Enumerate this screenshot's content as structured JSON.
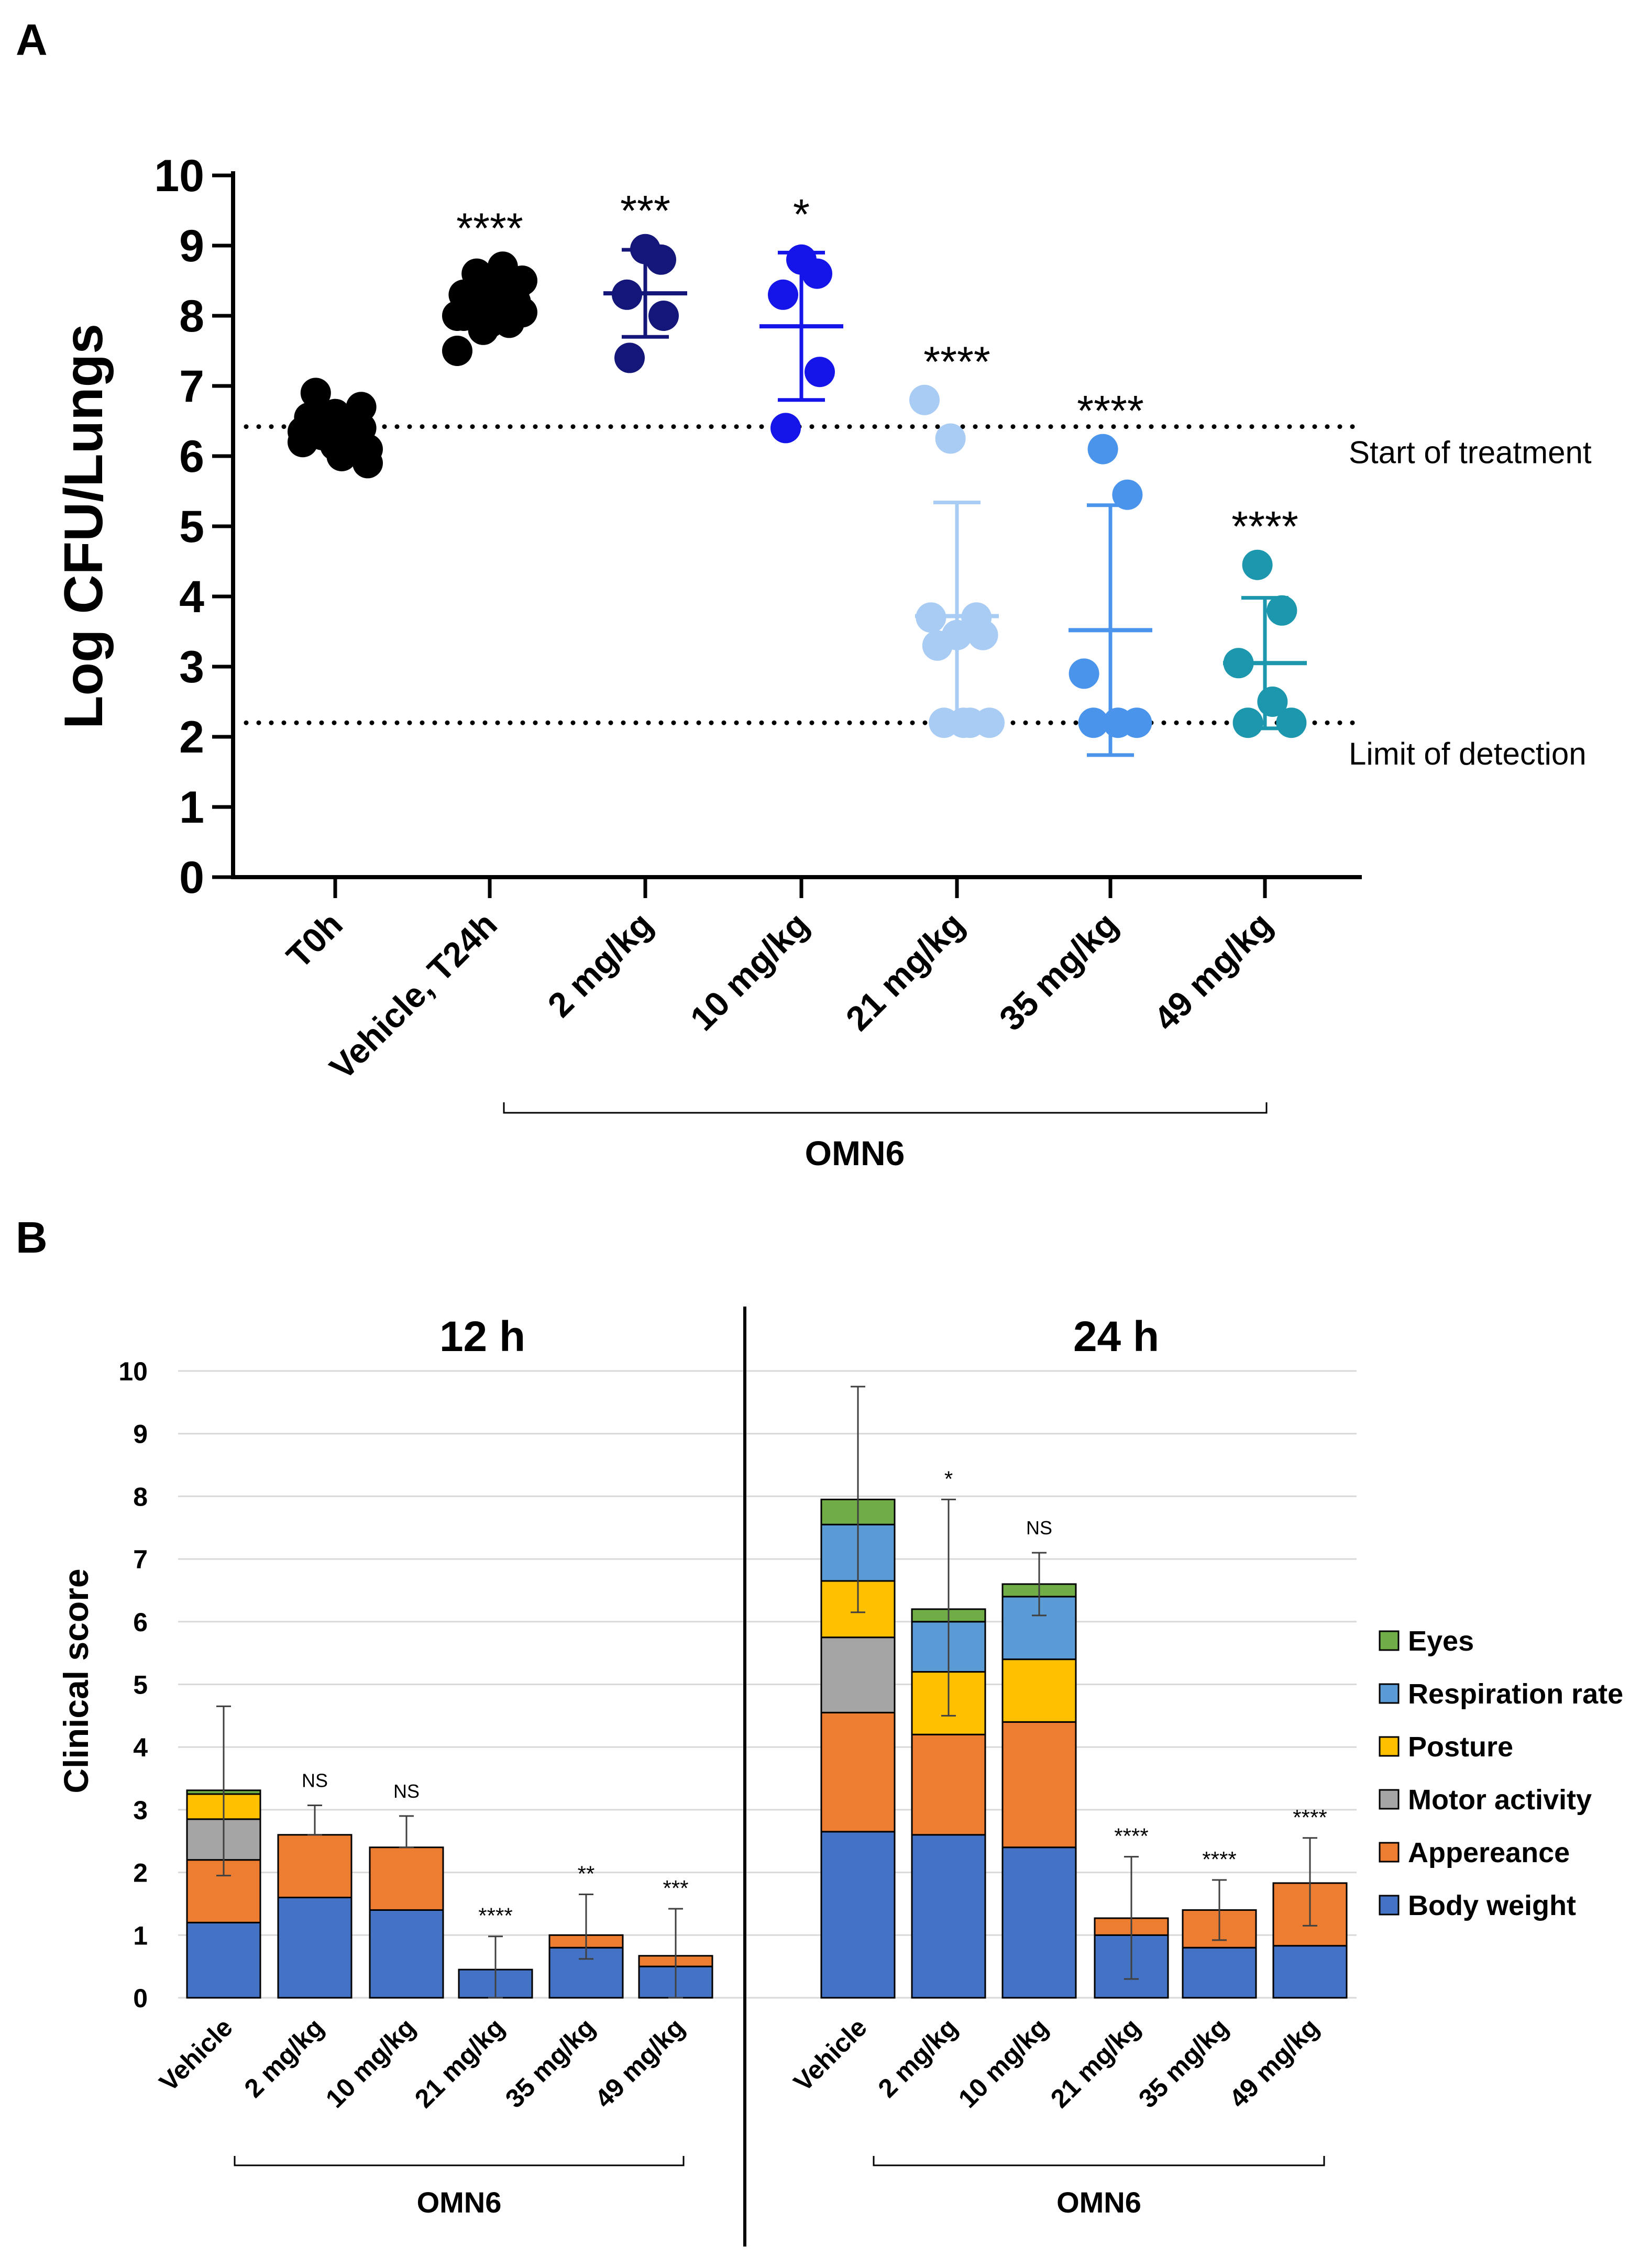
{
  "chart_data": [
    {
      "panel": "A",
      "type": "scatter",
      "ylabel": "Log CFU/Lungs",
      "ylim": [
        0,
        10
      ],
      "yticks": [
        "0",
        "1",
        "2",
        "3",
        "4",
        "5",
        "6",
        "7",
        "8",
        "9",
        "10"
      ],
      "categories": [
        "T0h",
        "Vehicle, T24h",
        "2 mg/kg",
        "10 mg/kg",
        "21 mg/kg",
        "35 mg/kg",
        "49 mg/kg"
      ],
      "bracket_label": "OMN6",
      "reference_lines": [
        {
          "label": "Start of treatment",
          "y": 6.42
        },
        {
          "label": "Limit of detection",
          "y": 2.2
        }
      ],
      "groups": [
        {
          "category": "T0h",
          "color": "#000000",
          "significance": "",
          "mean": null,
          "sd": null,
          "points": [
            6.2,
            6.3,
            6.4,
            6.5,
            6.6,
            6.7,
            6.9,
            6.0,
            6.1,
            6.3,
            6.5,
            6.35,
            6.45,
            6.25,
            6.55,
            6.15,
            6.4,
            6.6,
            6.3,
            5.9
          ]
        },
        {
          "category": "Vehicle, T24h",
          "color": "#000000",
          "significance": "****",
          "mean": null,
          "sd": null,
          "points": [
            7.5,
            7.8,
            7.9,
            8.0,
            8.1,
            8.2,
            8.3,
            8.4,
            8.5,
            8.6,
            8.7,
            8.0,
            8.1,
            8.2,
            8.3,
            7.9,
            8.4,
            8.15,
            8.25,
            8.05
          ]
        },
        {
          "category": "2 mg/kg",
          "color": "#15167a",
          "significance": "***",
          "mean": 8.32,
          "sd": 0.62,
          "points": [
            7.4,
            8.0,
            8.3,
            8.8,
            8.95
          ]
        },
        {
          "category": "10 mg/kg",
          "color": "#1515ea",
          "significance": "*",
          "mean": 7.85,
          "sd": 1.05,
          "points": [
            6.4,
            7.2,
            8.3,
            8.6,
            8.8
          ]
        },
        {
          "category": "21 mg/kg",
          "color": "#a9ccf4",
          "significance": "****",
          "mean": 3.72,
          "sd": 1.62,
          "points": [
            6.8,
            6.25,
            3.7,
            3.7,
            3.45,
            3.45,
            3.3,
            2.2,
            2.2,
            2.2,
            2.2
          ]
        },
        {
          "category": "35 mg/kg",
          "color": "#4a94ec",
          "significance": "****",
          "mean": 3.52,
          "sd": 1.78,
          "points": [
            6.1,
            5.45,
            2.9,
            2.2,
            2.2,
            2.2
          ]
        },
        {
          "category": "49 mg/kg",
          "color": "#1c97ae",
          "significance": "****",
          "mean": 3.05,
          "sd": 0.93,
          "points": [
            4.45,
            3.8,
            3.05,
            2.5,
            2.2,
            2.2
          ]
        }
      ]
    },
    {
      "panel": "B",
      "type": "bar",
      "stacked": true,
      "ylabel": "Clinical score",
      "ylim": [
        0,
        10
      ],
      "yticks": [
        "0",
        "1",
        "2",
        "3",
        "4",
        "5",
        "6",
        "7",
        "8",
        "9",
        "10"
      ],
      "categories": [
        "Vehicle",
        "2 mg/kg",
        "10 mg/kg",
        "21 mg/kg",
        "35 mg/kg",
        "49 mg/kg"
      ],
      "bracket_label": "OMN6",
      "legend": [
        {
          "name": "Eyes",
          "color": "#70ad47"
        },
        {
          "name": "Respiration rate",
          "color": "#5b9bd5"
        },
        {
          "name": "Posture",
          "color": "#ffc000"
        },
        {
          "name": "Motor activity",
          "color": "#a5a5a5"
        },
        {
          "name": "Appereance",
          "color": "#ed7d31"
        },
        {
          "name": "Body weight",
          "color": "#4472c4"
        }
      ],
      "subplots": [
        {
          "title": "12 h",
          "significance": [
            "",
            "NS",
            "NS",
            "****",
            "**",
            "***"
          ],
          "error_upper": [
            4.65,
            3.07,
            2.9,
            0.98,
            1.65,
            1.42
          ],
          "error_lower": [
            1.95,
            2.6,
            2.4,
            0.0,
            0.62,
            0.0
          ],
          "series": [
            {
              "name": "Body weight",
              "values": [
                1.2,
                1.6,
                1.4,
                0.45,
                0.8,
                0.5
              ]
            },
            {
              "name": "Appereance",
              "values": [
                1.0,
                1.0,
                1.0,
                0.0,
                0.2,
                0.17
              ]
            },
            {
              "name": "Motor activity",
              "values": [
                0.65,
                0,
                0,
                0,
                0,
                0
              ]
            },
            {
              "name": "Posture",
              "values": [
                0.4,
                0,
                0,
                0,
                0,
                0
              ]
            },
            {
              "name": "Respiration rate",
              "values": [
                0,
                0,
                0,
                0,
                0,
                0
              ]
            },
            {
              "name": "Eyes",
              "values": [
                0.06,
                0,
                0,
                0,
                0,
                0
              ]
            }
          ]
        },
        {
          "title": "24 h",
          "significance": [
            "",
            "*",
            "NS",
            "****",
            "****",
            "****"
          ],
          "error_upper": [
            9.75,
            7.95,
            7.1,
            2.25,
            1.88,
            2.55
          ],
          "error_lower": [
            6.15,
            4.5,
            6.1,
            0.3,
            0.92,
            1.15
          ],
          "series": [
            {
              "name": "Body weight",
              "values": [
                2.65,
                2.6,
                2.4,
                1.0,
                0.8,
                0.83
              ]
            },
            {
              "name": "Appereance",
              "values": [
                1.9,
                1.6,
                2.0,
                0.27,
                0.6,
                1.0
              ]
            },
            {
              "name": "Motor activity",
              "values": [
                1.2,
                0,
                0,
                0,
                0,
                0
              ]
            },
            {
              "name": "Posture",
              "values": [
                0.9,
                1.0,
                1.0,
                0,
                0,
                0
              ]
            },
            {
              "name": "Respiration rate",
              "values": [
                0.9,
                0.8,
                1.0,
                0,
                0,
                0
              ]
            },
            {
              "name": "Eyes",
              "values": [
                0.4,
                0.2,
                0.2,
                0,
                0,
                0
              ]
            }
          ]
        }
      ]
    }
  ],
  "labels": {
    "panel_a": "A",
    "panel_b": "B"
  }
}
